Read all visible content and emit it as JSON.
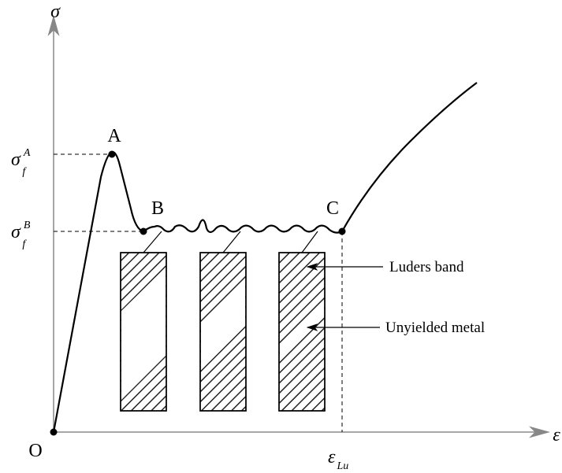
{
  "axes": {
    "y_label": "σ",
    "x_label": "ε",
    "origin": "O"
  },
  "points": {
    "a": "A",
    "b": "B",
    "c": "C"
  },
  "levels": [
    {
      "symbol": "σ",
      "subscript": "f",
      "superscript": "A"
    },
    {
      "symbol": "σ",
      "subscript": "f",
      "superscript": "B"
    }
  ],
  "strain_label": {
    "symbol": "ε",
    "subscript": "Lu"
  },
  "callouts": [
    "Luders band",
    "Unyielded metal"
  ]
}
